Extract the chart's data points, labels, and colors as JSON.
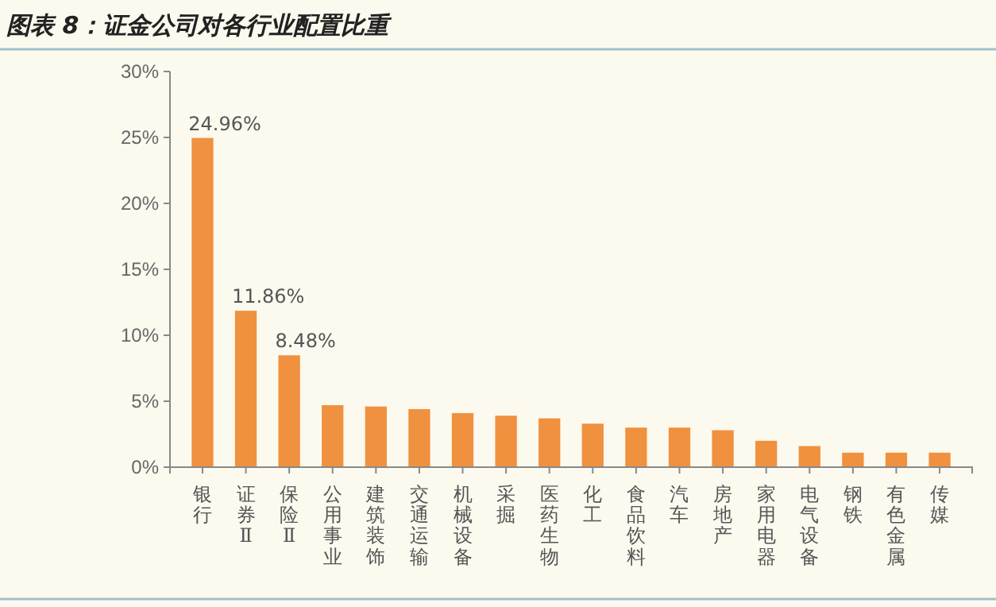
{
  "chart_data": {
    "type": "bar",
    "title": "图表 8：证金公司对各行业配置比重",
    "categories": [
      "银行",
      "证券Ⅱ",
      "保险Ⅱ",
      "公用事业",
      "建筑装饰",
      "交通运输",
      "机械设备",
      "采掘",
      "医药生物",
      "化工",
      "食品饮料",
      "汽车",
      "房地产",
      "家用电器",
      "电气设备",
      "钢铁",
      "有色金属",
      "传媒"
    ],
    "values": [
      24.96,
      11.86,
      8.48,
      4.7,
      4.6,
      4.4,
      4.1,
      3.9,
      3.7,
      3.3,
      3.0,
      3.0,
      2.8,
      2.0,
      1.6,
      1.1,
      1.1,
      1.1
    ],
    "value_labels": [
      "24.96%",
      "11.86%",
      "8.48%",
      null,
      null,
      null,
      null,
      null,
      null,
      null,
      null,
      null,
      null,
      null,
      null,
      null,
      null,
      null
    ],
    "color": "#f0913f",
    "ylim": [
      0,
      30
    ],
    "yticks": [
      {
        "value": 0,
        "label": "0%"
      },
      {
        "value": 5,
        "label": "5%"
      },
      {
        "value": 10,
        "label": "10%"
      },
      {
        "value": 15,
        "label": "15%"
      },
      {
        "value": 20,
        "label": "20%"
      },
      {
        "value": 25,
        "label": "25%"
      },
      {
        "value": 30,
        "label": "30%"
      }
    ],
    "grid": false
  }
}
